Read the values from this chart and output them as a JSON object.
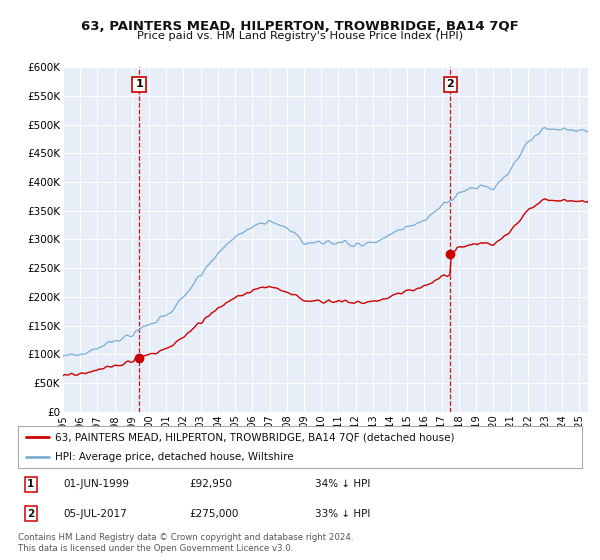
{
  "title": "63, PAINTERS MEAD, HILPERTON, TROWBRIDGE, BA14 7QF",
  "subtitle": "Price paid vs. HM Land Registry's House Price Index (HPI)",
  "ylim": [
    0,
    600000
  ],
  "yticks": [
    0,
    50000,
    100000,
    150000,
    200000,
    250000,
    300000,
    350000,
    400000,
    450000,
    500000,
    550000,
    600000
  ],
  "ytick_labels": [
    "£0",
    "£50K",
    "£100K",
    "£150K",
    "£200K",
    "£250K",
    "£300K",
    "£350K",
    "£400K",
    "£450K",
    "£500K",
    "£550K",
    "£600K"
  ],
  "xlim_start": 1995.0,
  "xlim_end": 2025.5,
  "hpi_color": "#7aadd4",
  "price_color": "#cc0000",
  "sale1_date": 1999.42,
  "sale1_price": 92950,
  "sale2_date": 2017.51,
  "sale2_price": 275000,
  "vline_color": "#cc0000",
  "bg_color": "#e8eef8",
  "grid_color": "#ffffff",
  "legend_label1": "63, PAINTERS MEAD, HILPERTON, TROWBRIDGE, BA14 7QF (detached house)",
  "legend_label2": "HPI: Average price, detached house, Wiltshire",
  "table_row1": [
    "1",
    "01-JUN-1999",
    "£92,950",
    "34% ↓ HPI"
  ],
  "table_row2": [
    "2",
    "05-JUL-2017",
    "£275,000",
    "33% ↓ HPI"
  ],
  "footer1": "Contains HM Land Registry data © Crown copyright and database right 2024.",
  "footer2": "This data is licensed under the Open Government Licence v3.0."
}
